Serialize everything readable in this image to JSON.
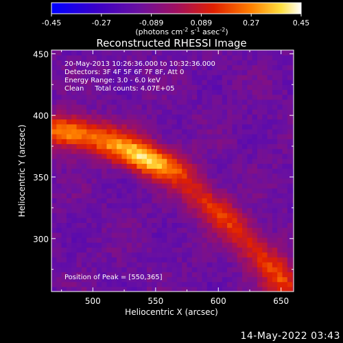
{
  "chart_data": {
    "type": "heatmap",
    "title": "Reconstructed RHESSI Image",
    "xlabel": "Heliocentric X (arcsec)",
    "ylabel": "Heliocentric Y (arcsec)",
    "xlim": [
      467,
      660
    ],
    "ylim": [
      257,
      453
    ],
    "x_ticks": [
      500,
      550,
      600,
      650
    ],
    "y_ticks": [
      300,
      350,
      400,
      450
    ],
    "colorbar": {
      "min": -0.45,
      "max": 0.45,
      "ticks": [
        "-0.45",
        "-0.27",
        "-0.089",
        "0.089",
        "0.27",
        "0.45"
      ],
      "label_base": "(photons cm",
      "label_exp1": "-2",
      "label_mid": " s",
      "label_exp2": "-1",
      "label_end": " asec",
      "label_exp3": "-2",
      "label_close": ")"
    },
    "annotations": [
      "20-May-2013 10:26:36.000 to 10:32:36.000",
      "Detectors: 3F 4F 5F 6F 7F 8F, Att 0",
      "Energy Range: 3.0 - 6.0 keV",
      "Clean     Total counts: 4.07E+05"
    ],
    "peak_label": "Position of Peak = [550,365]",
    "peak": [
      550,
      365
    ],
    "sources": [
      {
        "x": 545,
        "y": 364,
        "sx": 22,
        "sy": 9,
        "amp": 0.48,
        "angle_deg": -20
      },
      {
        "x": 500,
        "y": 382,
        "sx": 26,
        "sy": 10,
        "amp": 0.3,
        "angle_deg": -10
      },
      {
        "x": 475,
        "y": 388,
        "sx": 14,
        "sy": 9,
        "amp": 0.22,
        "angle_deg": 0
      },
      {
        "x": 590,
        "y": 330,
        "sx": 22,
        "sy": 9,
        "amp": 0.24,
        "angle_deg": -40
      },
      {
        "x": 620,
        "y": 300,
        "sx": 22,
        "sy": 9,
        "amp": 0.22,
        "angle_deg": -50
      },
      {
        "x": 645,
        "y": 275,
        "sx": 16,
        "sy": 10,
        "amp": 0.2,
        "angle_deg": -60
      },
      {
        "x": 655,
        "y": 262,
        "sx": 10,
        "sy": 10,
        "amp": 0.16,
        "angle_deg": 0
      }
    ],
    "background_level": -0.13,
    "pixel_size_arcsec": 4
  },
  "footer": {
    "date": "14-May-2022 03:43"
  }
}
